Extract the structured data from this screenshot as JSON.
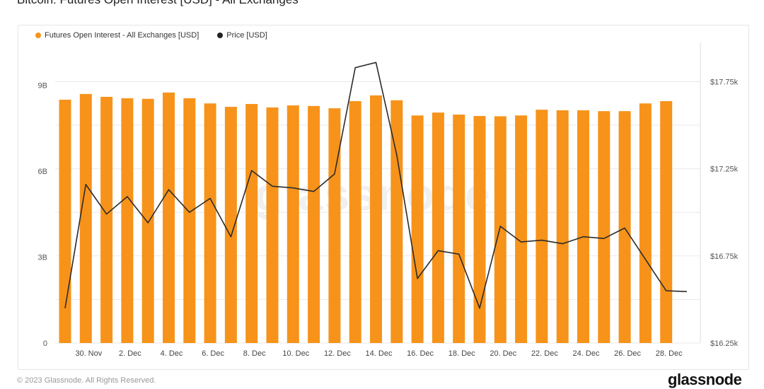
{
  "page": {
    "title": "Bitcoin: Futures Open Interest [USD] - All Exchanges",
    "footer_text": "© 2023 Glassnode. All Rights Reserved.",
    "logo_text": "glassnode",
    "watermark_text": "glassnode"
  },
  "legend": [
    {
      "label": "Futures Open Interest - All Exchanges [USD]",
      "color": "#f7931a"
    },
    {
      "label": "Price [USD]",
      "color": "#222222"
    }
  ],
  "colors": {
    "bar": "#f7931a",
    "line": "#2b2b2b",
    "grid": "#e9e9e9"
  },
  "chart_data": {
    "type": "bar",
    "dates": [
      "29 Nov",
      "30 Nov",
      "1 Dec",
      "2 Dec",
      "3 Dec",
      "4 Dec",
      "5 Dec",
      "6 Dec",
      "7 Dec",
      "8 Dec",
      "9 Dec",
      "10 Dec",
      "11 Dec",
      "12 Dec",
      "13 Dec",
      "14 Dec",
      "15 Dec",
      "16 Dec",
      "17 Dec",
      "18 Dec",
      "19 Dec",
      "20 Dec",
      "21 Dec",
      "22 Dec",
      "23 Dec",
      "24 Dec",
      "25 Dec",
      "26 Dec",
      "27 Dec",
      "28 Dec",
      "29 Dec"
    ],
    "x_tick_labels": [
      "30. Nov",
      "2. Dec",
      "4. Dec",
      "6. Dec",
      "8. Dec",
      "10. Dec",
      "12. Dec",
      "14. Dec",
      "16. Dec",
      "18. Dec",
      "20. Dec",
      "22. Dec",
      "24. Dec",
      "26. Dec",
      "28. Dec"
    ],
    "x_tick_indices": [
      1,
      3,
      5,
      7,
      9,
      11,
      13,
      15,
      17,
      19,
      21,
      23,
      25,
      27,
      29
    ],
    "series": [
      {
        "name": "Futures Open Interest - All Exchanges [USD]",
        "axis": "left",
        "values": [
          8.5,
          8.7,
          8.6,
          8.55,
          8.53,
          8.75,
          8.55,
          8.37,
          8.25,
          8.35,
          8.23,
          8.3,
          8.28,
          8.2,
          8.45,
          8.65,
          8.48,
          7.95,
          8.05,
          7.98,
          7.93,
          7.92,
          7.95,
          8.15,
          8.13,
          8.13,
          8.1,
          8.1,
          8.37,
          8.45,
          null
        ]
      },
      {
        "name": "Price [USD]",
        "axis": "right",
        "values": [
          16450,
          17160,
          16990,
          17090,
          16940,
          17130,
          17000,
          17080,
          16860,
          17240,
          17150,
          17140,
          17120,
          17220,
          17830,
          17860,
          17330,
          16620,
          16780,
          16760,
          16450,
          16920,
          16830,
          16840,
          16820,
          16860,
          16850,
          16910,
          16730,
          16550,
          16545
        ]
      }
    ],
    "y_left": {
      "ticks": [
        0,
        3,
        6,
        9
      ],
      "tick_labels": [
        "0",
        "3B",
        "6B",
        "9B"
      ],
      "ylim": [
        0,
        10.5
      ]
    },
    "y_right": {
      "ticks": [
        16250,
        16750,
        17250,
        17750
      ],
      "tick_labels": [
        "$16.25k",
        "$16.75k",
        "$17.25k",
        "$17.75k"
      ],
      "ylim": [
        16250,
        17975
      ]
    },
    "grid": true,
    "legend_position": "top-left"
  }
}
